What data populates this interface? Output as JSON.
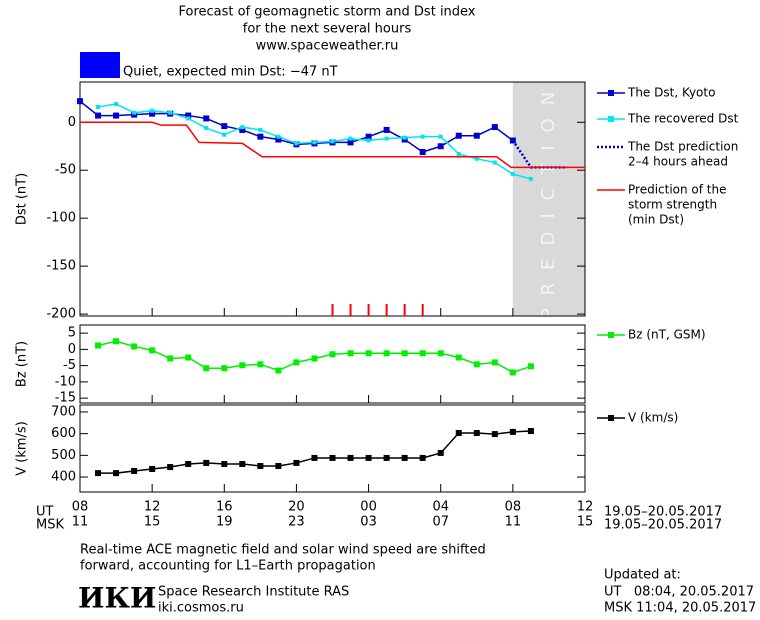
{
  "header": {
    "title_lines": [
      "Forecast of geomagnetic storm and Dst index",
      "for the next several hours",
      "www.spaceweather.ru"
    ]
  },
  "status": {
    "label": "Quiet, expected min Dst: −47 nT",
    "color": "#0000ff"
  },
  "time_axis": {
    "xlim": [
      0,
      28
    ],
    "ut_label": "UT",
    "msk_label": "MSK",
    "range_label": "19.05–20.05.2017",
    "ut_ticks": [
      {
        "value": 0,
        "label": "08"
      },
      {
        "value": 4,
        "label": "12"
      },
      {
        "value": 8,
        "label": "16"
      },
      {
        "value": 12,
        "label": "20"
      },
      {
        "value": 16,
        "label": "00"
      },
      {
        "value": 20,
        "label": "04"
      },
      {
        "value": 24,
        "label": "08"
      },
      {
        "value": 28,
        "label": "12"
      }
    ],
    "msk_ticks": [
      {
        "value": 0,
        "label": "11"
      },
      {
        "value": 4,
        "label": "15"
      },
      {
        "value": 8,
        "label": "19"
      },
      {
        "value": 12,
        "label": "23"
      },
      {
        "value": 16,
        "label": "03"
      },
      {
        "value": 20,
        "label": "07"
      },
      {
        "value": 24,
        "label": "11"
      },
      {
        "value": 28,
        "label": "15"
      }
    ]
  },
  "chart_data": [
    {
      "type": "line",
      "ylabel": "Dst (nT)",
      "ylim": [
        -202,
        42
      ],
      "yticks": [
        0,
        -50,
        -100,
        -150,
        -200
      ],
      "prediction_region": {
        "xlim": [
          24,
          28
        ],
        "label": "PREDICTION",
        "color": "#d9d9d9"
      },
      "storm_markers_x": [
        14,
        15,
        16,
        17,
        18,
        19
      ],
      "storm_marker_color": "#ff0000",
      "series": [
        {
          "name": [
            "The Dst, Kyoto"
          ],
          "color": "#0000cc",
          "marker": "square",
          "x": [
            0,
            1,
            2,
            3,
            4,
            5,
            6,
            7,
            8,
            9,
            10,
            11,
            12,
            13,
            14,
            15,
            16,
            17,
            18,
            19,
            20,
            21,
            22,
            23,
            24
          ],
          "values": [
            22,
            7,
            7,
            8,
            9,
            9,
            7,
            4,
            -4,
            -8,
            -15,
            -18,
            -23,
            -22,
            -21,
            -21,
            -15,
            -8,
            -18,
            -31,
            -25,
            -14,
            -14,
            -5,
            -19
          ]
        },
        {
          "name": [
            "The recovered Dst"
          ],
          "color": "#00e5ee",
          "marker": "small-square",
          "x": [
            1,
            2,
            3,
            4,
            5,
            6,
            7,
            8,
            9,
            10,
            11,
            12,
            13,
            14,
            15,
            16,
            17,
            18,
            19,
            20,
            21,
            22,
            23,
            24,
            25
          ],
          "values": [
            16,
            19,
            10,
            12,
            10,
            4,
            -6,
            -13,
            -5,
            -8,
            -15,
            -22,
            -21,
            -20,
            -17,
            -19,
            -17,
            -16,
            -15,
            -15,
            -33,
            -38,
            -42,
            -54,
            -59
          ]
        },
        {
          "name": [
            "The Dst prediction",
            "2–4 hours ahead"
          ],
          "color": "#0000cc",
          "dash": true,
          "x": [
            24,
            25,
            26,
            27
          ],
          "values": [
            -19,
            -47,
            -47,
            -47
          ]
        },
        {
          "name": [
            "Prediction of the",
            "storm strength",
            "(min Dst)"
          ],
          "color": "#ff0000",
          "x": [
            0,
            4,
            4.5,
            5.9,
            6.6,
            9,
            10.1,
            23.1,
            23.9,
            28
          ],
          "values": [
            0,
            0,
            -3,
            -3,
            -21,
            -22,
            -36,
            -36,
            -47,
            -47
          ]
        }
      ]
    },
    {
      "type": "line",
      "ylabel": "Bz (nT)",
      "ylim": [
        -16.5,
        7.5
      ],
      "yticks": [
        5,
        0,
        -5,
        -10,
        -15
      ],
      "series": [
        {
          "name": [
            "Bz (nT, GSM)"
          ],
          "color": "#00ee00",
          "marker": "square",
          "x": [
            1,
            2,
            3,
            4,
            5,
            6,
            7,
            8,
            9,
            10,
            11,
            12,
            13,
            14,
            15,
            16,
            17,
            18,
            19,
            20,
            21,
            22,
            23,
            24,
            25
          ],
          "values": [
            1.2,
            2.5,
            0.9,
            -0.3,
            -2.8,
            -2.5,
            -5.8,
            -5.8,
            -4.9,
            -4.6,
            -6.5,
            -4,
            -2.8,
            -1.5,
            -1.2,
            -1.2,
            -1.2,
            -1.2,
            -1.2,
            -1.2,
            -2.5,
            -4.6,
            -4,
            -7.1,
            -5.2
          ]
        }
      ]
    },
    {
      "type": "line",
      "ylabel": "V (km/s)",
      "ylim": [
        331,
        732
      ],
      "yticks": [
        400,
        500,
        600,
        700
      ],
      "series": [
        {
          "name": [
            "V (km/s)"
          ],
          "color": "#000000",
          "marker": "square",
          "x": [
            1,
            2,
            3,
            4,
            5,
            6,
            7,
            8,
            9,
            10,
            11,
            12,
            13,
            14,
            15,
            16,
            17,
            18,
            19,
            20,
            21,
            22,
            23,
            24,
            25
          ],
          "values": [
            418,
            418,
            428,
            437,
            446,
            460,
            465,
            460,
            460,
            451,
            451,
            465,
            488,
            488,
            488,
            488,
            488,
            488,
            488,
            511,
            603,
            603,
            598,
            608,
            612
          ]
        }
      ]
    }
  ],
  "footer": {
    "note_lines": [
      "Real-time ACE magnetic field and solar wind speed are shifted",
      "forward, accounting for L1–Earth propagation"
    ],
    "logo": "ИКИ",
    "institute": "Space Research Institute RAS",
    "url": "iki.cosmos.ru",
    "updated_lines": [
      "Updated at:",
      "UT   08:04, 20.05.2017",
      "MSK 11:04, 20.05.2017"
    ]
  }
}
